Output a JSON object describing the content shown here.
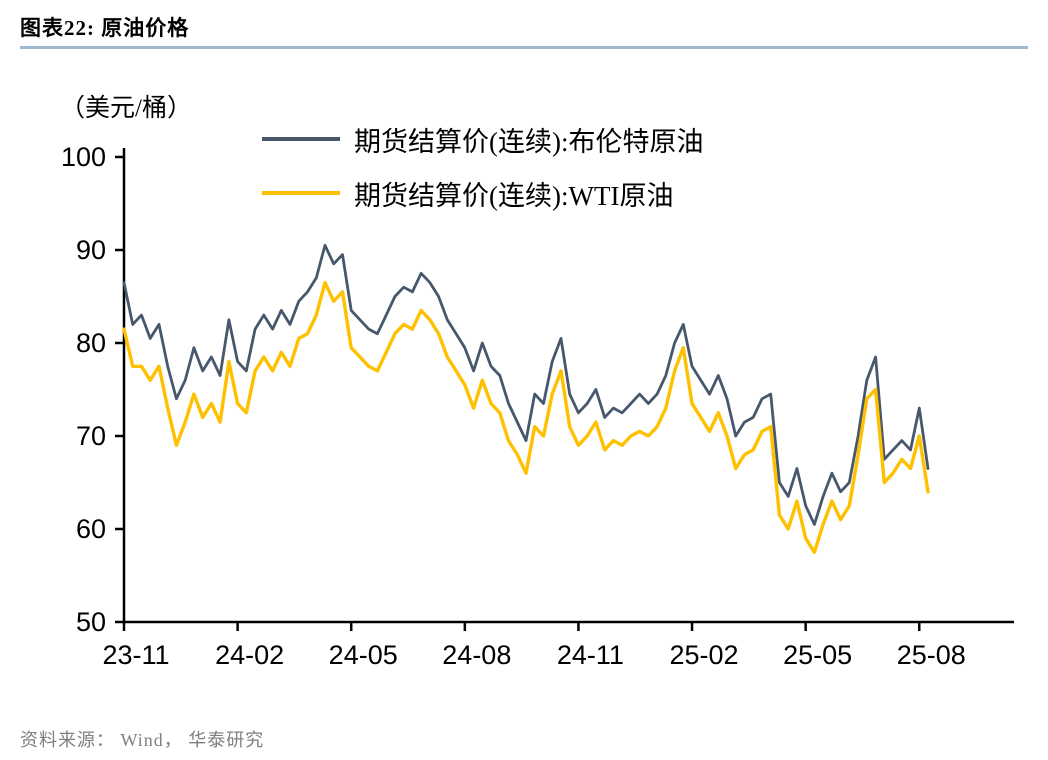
{
  "header": {
    "title": "图表22:  原油价格"
  },
  "rule_color": "#9DB7D1",
  "legend": [
    {
      "label": "期货结算价(连续):布伦特原油",
      "color": "#47586D"
    },
    {
      "label": "期货结算价(连续):WTI原油",
      "color": "#FFC000"
    }
  ],
  "source": "资料来源： Wind， 华泰研究",
  "chart_data": {
    "type": "line",
    "title": "原油价格",
    "xlabel": "",
    "ylabel": "（美元/桶）",
    "ylim": [
      50,
      100
    ],
    "yticks": [
      50,
      60,
      70,
      80,
      90,
      100
    ],
    "grid": false,
    "legend_position": "top-left-inside",
    "x_unit": "weekly points, Nov 2023 to Aug 2025",
    "x_tick_labels": [
      "23-11",
      "24-02",
      "24-05",
      "24-08",
      "24-11",
      "25-02",
      "25-05",
      "25-08"
    ],
    "x_tick_indices": [
      0,
      13,
      26,
      39,
      52,
      65,
      78,
      91
    ],
    "series": [
      {
        "name": "期货结算价(连续):布伦特原油",
        "color": "#47586D",
        "values": [
          86.5,
          82,
          83,
          80.5,
          82,
          77.5,
          74,
          76,
          79.5,
          77,
          78.5,
          76.5,
          82.5,
          78,
          77,
          81.5,
          83,
          81.5,
          83.5,
          82,
          84.5,
          85.5,
          87,
          90.5,
          88.5,
          89.5,
          83.5,
          82.5,
          81.5,
          81,
          83,
          85,
          86,
          85.5,
          87.5,
          86.5,
          85,
          82.5,
          81,
          79.5,
          77,
          80,
          77.5,
          76.5,
          73.5,
          71.5,
          69.5,
          74.5,
          73.5,
          78,
          80.5,
          74.5,
          72.5,
          73.5,
          75,
          72,
          73,
          72.5,
          73.5,
          74.5,
          73.5,
          74.5,
          76.5,
          80,
          82,
          77.5,
          76,
          74.5,
          76.5,
          74,
          70,
          71.5,
          72,
          74,
          74.5,
          65,
          63.5,
          66.5,
          62.5,
          60.5,
          63.5,
          66,
          64,
          65,
          70,
          76,
          78.5,
          67.5,
          68.5,
          69.5,
          68.5,
          73,
          66.5
        ]
      },
      {
        "name": "期货结算价(连续):WTI原油",
        "color": "#FFC000",
        "values": [
          81.5,
          77.5,
          77.5,
          76,
          77.5,
          73,
          69,
          71.5,
          74.5,
          72,
          73.5,
          71.5,
          78,
          73.5,
          72.5,
          77,
          78.5,
          77,
          79,
          77.5,
          80.5,
          81,
          83,
          86.5,
          84.5,
          85.5,
          79.5,
          78.5,
          77.5,
          77,
          79,
          81,
          82,
          81.5,
          83.5,
          82.5,
          81,
          78.5,
          77,
          75.5,
          73,
          76,
          73.5,
          72.5,
          69.5,
          68,
          66,
          71,
          70,
          74.5,
          77,
          71,
          69,
          70,
          71.5,
          68.5,
          69.5,
          69,
          70,
          70.5,
          70,
          71,
          73,
          77,
          79.5,
          73.5,
          72,
          70.5,
          72.5,
          70,
          66.5,
          68,
          68.5,
          70.5,
          71,
          61.5,
          60,
          63,
          59,
          57.5,
          60.5,
          63,
          61,
          62.5,
          68,
          74,
          75,
          65,
          66,
          67.5,
          66.5,
          70,
          64
        ]
      }
    ]
  }
}
